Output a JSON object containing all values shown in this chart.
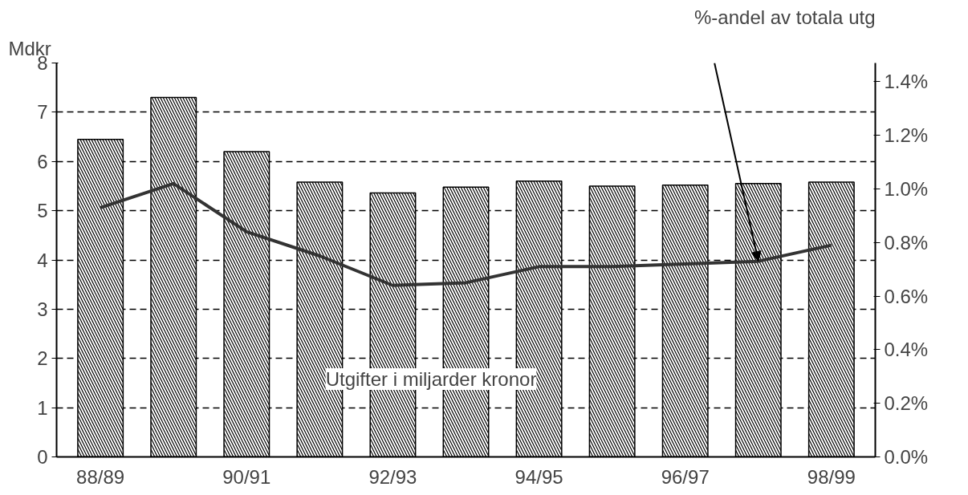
{
  "chart_data": {
    "type": "bar",
    "ylabel": "Mdkr",
    "categories": [
      "88/89",
      null,
      "90/91",
      null,
      "92/93",
      null,
      "94/95",
      null,
      "96/97",
      null,
      "98/99"
    ],
    "series": [
      {
        "color": "#000000",
        "values": [
          6.45,
          7.3,
          6.2,
          5.58,
          5.36,
          5.48,
          5.6,
          5.5,
          5.52,
          5.55,
          5.58
        ]
      },
      {
        "type": "line",
        "axis": "y2",
        "color": "#333333",
        "values": [
          0.93,
          1.02,
          0.84,
          0.75,
          0.64,
          0.65,
          0.71,
          0.71,
          0.72,
          0.73,
          0.79
        ]
      }
    ],
    "ylim": [
      0,
      8
    ],
    "yticks": [
      0,
      1,
      2,
      3,
      4,
      5,
      6,
      7,
      8
    ],
    "y2lim": [
      0,
      1.47
    ],
    "y2ticks": [
      {
        "value": 0,
        "label": "0.0%"
      },
      {
        "value": 0.2,
        "label": "0.2%"
      },
      {
        "value": 0.4,
        "label": "0.4%"
      },
      {
        "value": 0.6,
        "label": "0.6%"
      },
      {
        "value": 0.8,
        "label": "0.8%"
      },
      {
        "value": 1.0,
        "label": "1.0%"
      },
      {
        "value": 1.2,
        "label": "1.2%"
      },
      {
        "value": 1.4,
        "label": "1.4%"
      }
    ],
    "annotations": [
      "Utgifter i miljarder kronor",
      "%-andel av totala utg"
    ],
    "grid": "y"
  }
}
